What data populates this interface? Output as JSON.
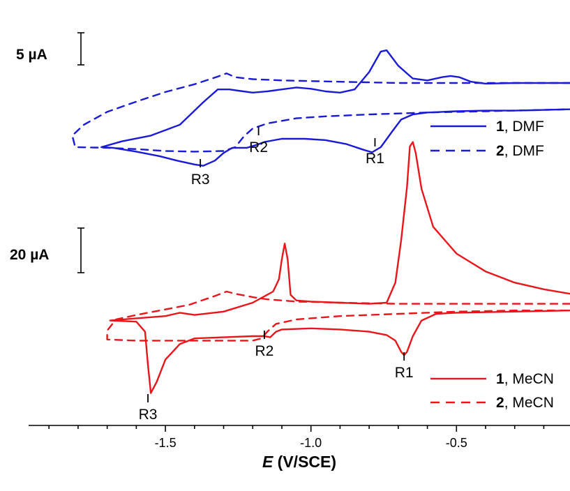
{
  "chart_data": {
    "type": "line",
    "title": "",
    "xlabel": {
      "italic": "E",
      "rest": " (V/SCE)"
    },
    "ylabel": "",
    "xlim": [
      -1.97,
      -0.11
    ],
    "x_ticks": [
      -1.5,
      -1.0,
      -0.5
    ],
    "x_tick_labels": [
      "-1.5",
      "-1.0",
      "-0.5"
    ],
    "grid": false,
    "colors": {
      "dmf": "#1a1ad6",
      "mecn": "#e8161b"
    },
    "scale_bars": [
      {
        "panel": "dmf",
        "label": "5 µA",
        "current_uA": 5
      },
      {
        "panel": "mecn",
        "label": "20 µA",
        "current_uA": 20
      }
    ],
    "annotations": [
      {
        "panel": "dmf",
        "label": "R3",
        "E": -1.38
      },
      {
        "panel": "dmf",
        "label": "R2",
        "E": -1.18
      },
      {
        "panel": "dmf",
        "label": "R1",
        "E": -0.78
      },
      {
        "panel": "mecn",
        "label": "R3",
        "E": -1.56
      },
      {
        "panel": "mecn",
        "label": "R2",
        "E": -1.16
      },
      {
        "panel": "mecn",
        "label": "R1",
        "E": -0.68
      }
    ],
    "legend": [
      {
        "panel": "dmf",
        "bold": "1",
        "text": ", DMF",
        "style": "solid"
      },
      {
        "panel": "dmf",
        "bold": "2",
        "text": ", DMF",
        "style": "dashed"
      },
      {
        "panel": "mecn",
        "bold": "1",
        "text": ", MeCN",
        "style": "solid"
      },
      {
        "panel": "mecn",
        "bold": "2",
        "text": ", MeCN",
        "style": "dashed"
      }
    ],
    "series": [
      {
        "compound": "1",
        "solvent": "DMF",
        "panel": "dmf",
        "style": "solid",
        "color": "#1a1ad6",
        "points": [
          [
            -0.11,
            -7.5
          ],
          [
            -0.2,
            -7.5
          ],
          [
            -0.3,
            -7.5
          ],
          [
            -0.4,
            -7.6
          ],
          [
            -0.45,
            -7.3
          ],
          [
            -0.49,
            -6.6
          ],
          [
            -0.52,
            -6.4
          ],
          [
            -0.55,
            -6.6
          ],
          [
            -0.6,
            -7.1
          ],
          [
            -0.65,
            -6.8
          ],
          [
            -0.7,
            -4.8
          ],
          [
            -0.74,
            -2.4
          ],
          [
            -0.76,
            -2.6
          ],
          [
            -0.8,
            -5.8
          ],
          [
            -0.85,
            -8.5
          ],
          [
            -0.9,
            -9.0
          ],
          [
            -0.95,
            -8.8
          ],
          [
            -1.0,
            -8.4
          ],
          [
            -1.05,
            -8.2
          ],
          [
            -1.1,
            -8.5
          ],
          [
            -1.15,
            -8.8
          ],
          [
            -1.2,
            -9.0
          ],
          [
            -1.25,
            -8.7
          ],
          [
            -1.28,
            -8.5
          ],
          [
            -1.32,
            -8.5
          ],
          [
            -1.37,
            -10.5
          ],
          [
            -1.45,
            -14.0
          ],
          [
            -1.55,
            -15.7
          ],
          [
            -1.65,
            -16.6
          ],
          [
            -1.72,
            -17.5
          ],
          [
            -1.68,
            -17.6
          ],
          [
            -1.6,
            -18.2
          ],
          [
            -1.52,
            -18.9
          ],
          [
            -1.46,
            -19.6
          ],
          [
            -1.4,
            -20.2
          ],
          [
            -1.37,
            -20.4
          ],
          [
            -1.33,
            -19.6
          ],
          [
            -1.3,
            -18.4
          ],
          [
            -1.27,
            -17.6
          ],
          [
            -1.22,
            -17.6
          ],
          [
            -1.19,
            -17.2
          ],
          [
            -1.16,
            -16.7
          ],
          [
            -1.1,
            -16.2
          ],
          [
            -1.02,
            -16.2
          ],
          [
            -0.95,
            -16.4
          ],
          [
            -0.88,
            -17.0
          ],
          [
            -0.82,
            -17.9
          ],
          [
            -0.79,
            -18.3
          ],
          [
            -0.76,
            -17.5
          ],
          [
            -0.72,
            -15.0
          ],
          [
            -0.69,
            -13.2
          ],
          [
            -0.65,
            -12.4
          ],
          [
            -0.6,
            -12.1
          ],
          [
            -0.5,
            -11.9
          ],
          [
            -0.4,
            -11.8
          ],
          [
            -0.3,
            -11.8
          ],
          [
            -0.2,
            -11.7
          ],
          [
            -0.11,
            -11.6
          ]
        ]
      },
      {
        "compound": "2",
        "solvent": "DMF",
        "panel": "dmf",
        "style": "dashed",
        "color": "#1a1ad6",
        "points": [
          [
            -0.11,
            -7.5
          ],
          [
            -0.3,
            -7.5
          ],
          [
            -0.5,
            -7.5
          ],
          [
            -0.7,
            -7.5
          ],
          [
            -0.9,
            -7.3
          ],
          [
            -1.1,
            -7.1
          ],
          [
            -1.2,
            -6.9
          ],
          [
            -1.26,
            -6.6
          ],
          [
            -1.29,
            -6.0
          ],
          [
            -1.32,
            -6.5
          ],
          [
            -1.4,
            -7.7
          ],
          [
            -1.5,
            -8.9
          ],
          [
            -1.6,
            -10.4
          ],
          [
            -1.7,
            -12.0
          ],
          [
            -1.78,
            -14.0
          ],
          [
            -1.82,
            -15.7
          ],
          [
            -1.81,
            -17.5
          ],
          [
            -1.7,
            -17.6
          ],
          [
            -1.6,
            -17.8
          ],
          [
            -1.5,
            -18.1
          ],
          [
            -1.4,
            -18.2
          ],
          [
            -1.3,
            -18.1
          ],
          [
            -1.26,
            -17.5
          ],
          [
            -1.23,
            -15.8
          ],
          [
            -1.2,
            -14.6
          ],
          [
            -1.15,
            -13.8
          ],
          [
            -1.05,
            -13.0
          ],
          [
            -0.95,
            -12.7
          ],
          [
            -0.8,
            -12.4
          ],
          [
            -0.6,
            -12.1
          ],
          [
            -0.4,
            -11.9
          ],
          [
            -0.2,
            -11.7
          ],
          [
            -0.11,
            -11.6
          ]
        ]
      },
      {
        "compound": "1",
        "solvent": "MeCN",
        "panel": "mecn",
        "style": "solid",
        "color": "#e8161b",
        "points": [
          [
            -0.11,
            -8.6
          ],
          [
            -0.2,
            -8.2
          ],
          [
            -0.3,
            -7.6
          ],
          [
            -0.4,
            -6.6
          ],
          [
            -0.5,
            -5.0
          ],
          [
            -0.58,
            -2.6
          ],
          [
            -0.62,
            0.8
          ],
          [
            -0.64,
            4.0
          ],
          [
            -0.65,
            5.0
          ],
          [
            -0.66,
            4.6
          ],
          [
            -0.67,
            1.0
          ],
          [
            -0.69,
            -3.8
          ],
          [
            -0.71,
            -7.6
          ],
          [
            -0.74,
            -9.4
          ],
          [
            -0.8,
            -9.5
          ],
          [
            -0.9,
            -9.4
          ],
          [
            -1.0,
            -9.3
          ],
          [
            -1.05,
            -9.2
          ],
          [
            -1.07,
            -8.7
          ],
          [
            -1.08,
            -5.5
          ],
          [
            -1.09,
            -4.1
          ],
          [
            -1.1,
            -5.5
          ],
          [
            -1.11,
            -7.3
          ],
          [
            -1.13,
            -8.4
          ],
          [
            -1.2,
            -9.4
          ],
          [
            -1.3,
            -10.2
          ],
          [
            -1.4,
            -10.5
          ],
          [
            -1.45,
            -10.3
          ],
          [
            -1.5,
            -10.6
          ],
          [
            -1.6,
            -10.8
          ],
          [
            -1.69,
            -11.0
          ],
          [
            -1.6,
            -11.1
          ],
          [
            -1.57,
            -12.0
          ],
          [
            -1.56,
            -15.0
          ],
          [
            -1.55,
            -17.5
          ],
          [
            -1.53,
            -16.5
          ],
          [
            -1.5,
            -14.5
          ],
          [
            -1.45,
            -13.1
          ],
          [
            -1.4,
            -12.6
          ],
          [
            -1.3,
            -12.5
          ],
          [
            -1.2,
            -12.4
          ],
          [
            -1.16,
            -12.4
          ],
          [
            -1.14,
            -12.5
          ],
          [
            -1.12,
            -12.0
          ],
          [
            -1.1,
            -11.8
          ],
          [
            -1.0,
            -11.7
          ],
          [
            -0.9,
            -11.8
          ],
          [
            -0.8,
            -12.0
          ],
          [
            -0.74,
            -12.3
          ],
          [
            -0.71,
            -12.8
          ],
          [
            -0.69,
            -13.8
          ],
          [
            -0.68,
            -14.1
          ],
          [
            -0.67,
            -13.8
          ],
          [
            -0.65,
            -12.4
          ],
          [
            -0.62,
            -11.0
          ],
          [
            -0.57,
            -10.4
          ],
          [
            -0.5,
            -10.3
          ],
          [
            -0.3,
            -10.2
          ],
          [
            -0.11,
            -10.1
          ]
        ]
      },
      {
        "compound": "2",
        "solvent": "MeCN",
        "panel": "mecn",
        "style": "dashed",
        "color": "#e8161b",
        "points": [
          [
            -0.11,
            -9.5
          ],
          [
            -0.3,
            -9.5
          ],
          [
            -0.5,
            -9.5
          ],
          [
            -0.7,
            -9.5
          ],
          [
            -0.9,
            -9.4
          ],
          [
            -1.05,
            -9.3
          ],
          [
            -1.15,
            -9.1
          ],
          [
            -1.2,
            -8.9
          ],
          [
            -1.26,
            -8.6
          ],
          [
            -1.29,
            -8.4
          ],
          [
            -1.33,
            -8.8
          ],
          [
            -1.42,
            -9.6
          ],
          [
            -1.52,
            -10.1
          ],
          [
            -1.6,
            -10.5
          ],
          [
            -1.67,
            -10.9
          ],
          [
            -1.7,
            -11.9
          ],
          [
            -1.7,
            -12.7
          ],
          [
            -1.6,
            -12.8
          ],
          [
            -1.5,
            -12.8
          ],
          [
            -1.4,
            -12.8
          ],
          [
            -1.3,
            -12.8
          ],
          [
            -1.2,
            -12.8
          ],
          [
            -1.17,
            -12.6
          ],
          [
            -1.15,
            -12.0
          ],
          [
            -1.12,
            -11.3
          ],
          [
            -1.05,
            -10.9
          ],
          [
            -0.9,
            -10.6
          ],
          [
            -0.7,
            -10.4
          ],
          [
            -0.5,
            -10.2
          ],
          [
            -0.3,
            -10.1
          ],
          [
            -0.11,
            -10.1
          ]
        ]
      }
    ]
  }
}
